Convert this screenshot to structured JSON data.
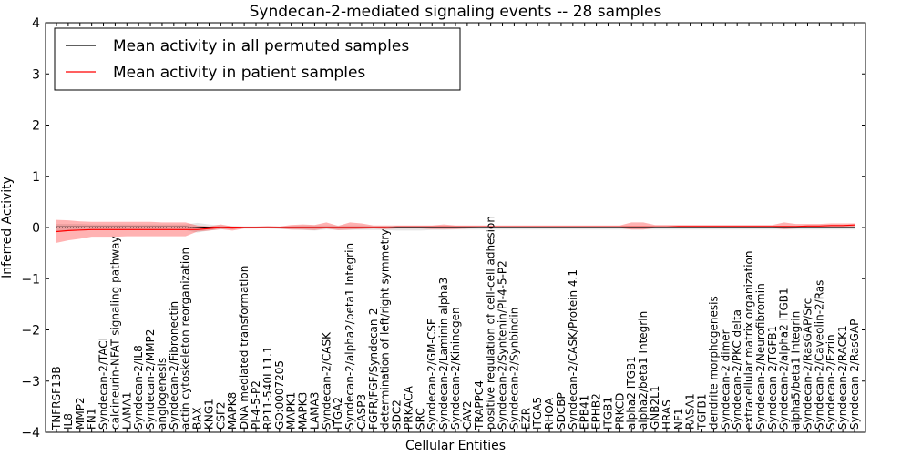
{
  "chart_data": {
    "type": "line",
    "title": "Syndecan-2-mediated signaling events -- 28 samples",
    "xlabel": "Cellular Entities",
    "ylabel": "Inferred Activity",
    "ylim": [
      -4,
      4
    ],
    "yticks": [
      -4,
      -3,
      -2,
      -1,
      0,
      1,
      2,
      3,
      4
    ],
    "ytick_labels": [
      "−4",
      "−3",
      "−2",
      "−1",
      "0",
      "1",
      "2",
      "3",
      "4"
    ],
    "legend_position": "top-left",
    "categories": [
      "TNFRSF13B",
      "IL8",
      "MMP2",
      "FN1",
      "Syndecan-2/TACI",
      "calcineurin-NFAT signaling pathway",
      "LAMA1",
      "Syndecan-2/IL8",
      "Syndecan-2/MMP2",
      "angiogenesis",
      "Syndecan-2/Fibronectin",
      "actin cytoskeleton reorganization",
      "BAX",
      "KNG1",
      "CSF2",
      "MAPK8",
      "DNA mediated transformation",
      "PI-4-5-P2",
      "RP11-540L11.1",
      "GO:0007205",
      "MAPK1",
      "MAPK3",
      "LAMA3",
      "Syndecan-2/CASK",
      "ITGA2",
      "Syndecan-2/alpha2/beta1 Integrin",
      "CASP3",
      "FGFR/FGF/Syndecan-2",
      "determination of left/right symmetry",
      "SDC2",
      "PRKACA",
      "SRC",
      "Syndecan-2/GM-CSF",
      "Syndecan-2/Laminin alpha3",
      "Syndecan-2/Kininogen",
      "CAV2",
      "TRAPPC4",
      "positive regulation of cell-cell adhesion",
      "Syndecan-2/Syntenin/PI-4-5-P2",
      "Syndecan-2/Synbindin",
      "EZR",
      "ITGA5",
      "RHOA",
      "SDCBP",
      "Syndecan-2/CASK/Protein 4.1",
      "EPB41",
      "EPHB2",
      "ITGB1",
      "PRKCD",
      "alpha2 ITGB1",
      "alpha2/beta1 Integrin",
      "GNB2L1",
      "HRAS",
      "NF1",
      "RASA1",
      "TGFB1",
      "dendrite morphogenesis",
      "Syndecan-2 dimer",
      "Syndecan-2/PKC delta",
      "extracellular matrix organization",
      "Syndecan-2/Neurofibromin",
      "Syndecan-2/TGFB1",
      "Syndecan-2/alpha2 ITGB1",
      "alpha5/beta1 Integrin",
      "Syndecan-2/RasGAP/Src",
      "Syndecan-2/Caveolin-2/Ras",
      "Syndecan-2/Ezrin",
      "Syndecan-2/RACK1",
      "Syndecan-2/RasGAP"
    ],
    "series": [
      {
        "name": "Mean activity in all permuted samples",
        "color": "#000000",
        "values": [
          0.01,
          0.01,
          0.01,
          0.01,
          0.01,
          0.01,
          0.01,
          0.01,
          0.01,
          0.01,
          0.01,
          0.01,
          0.0,
          -0.01,
          0.0,
          0.0,
          0.0,
          0.0,
          0.0,
          0.0,
          0.0,
          0.0,
          0.0,
          0.0,
          0.0,
          0.0,
          0.0,
          0.0,
          0.0,
          0.0,
          0.0,
          0.0,
          0.0,
          0.0,
          0.0,
          0.0,
          0.0,
          0.0,
          0.0,
          0.0,
          0.0,
          0.0,
          0.0,
          0.0,
          0.0,
          0.0,
          0.0,
          0.0,
          0.0,
          0.0,
          0.0,
          0.0,
          0.0,
          0.0,
          0.0,
          0.0,
          0.0,
          0.0,
          0.0,
          0.0,
          0.0,
          0.0,
          0.0,
          0.0,
          0.0,
          0.0,
          0.0,
          0.0,
          0.0
        ],
        "band_lower": [
          -0.08,
          -0.07,
          -0.06,
          -0.05,
          -0.05,
          -0.05,
          -0.05,
          -0.05,
          -0.05,
          -0.05,
          -0.05,
          -0.05,
          -0.1,
          -0.06,
          -0.04,
          -0.03,
          -0.02,
          -0.02,
          -0.02,
          -0.03,
          -0.04,
          -0.05,
          -0.06,
          -0.04,
          -0.05,
          -0.05,
          -0.05,
          -0.05,
          -0.05,
          -0.06,
          -0.06,
          -0.06,
          -0.05,
          -0.05,
          -0.04,
          -0.04,
          -0.04,
          -0.04,
          -0.04,
          -0.04,
          -0.04,
          -0.04,
          -0.04,
          -0.04,
          -0.04,
          -0.04,
          -0.04,
          -0.04,
          -0.04,
          -0.04,
          -0.04,
          -0.04,
          -0.04,
          -0.04,
          -0.04,
          -0.04,
          -0.04,
          -0.04,
          -0.04,
          -0.04,
          -0.04,
          -0.04,
          -0.04,
          -0.04,
          -0.04,
          -0.04,
          -0.04,
          -0.04,
          -0.04
        ],
        "band_upper": [
          0.07,
          0.07,
          0.07,
          0.06,
          0.06,
          0.06,
          0.06,
          0.06,
          0.06,
          0.06,
          0.06,
          0.06,
          0.09,
          0.06,
          0.04,
          0.03,
          0.02,
          0.02,
          0.02,
          0.02,
          0.03,
          0.04,
          0.04,
          0.04,
          0.04,
          0.04,
          0.04,
          0.03,
          0.03,
          0.03,
          0.03,
          0.03,
          0.03,
          0.03,
          0.03,
          0.03,
          0.03,
          0.03,
          0.03,
          0.03,
          0.03,
          0.03,
          0.03,
          0.03,
          0.03,
          0.03,
          0.03,
          0.03,
          0.03,
          0.03,
          0.03,
          0.03,
          0.03,
          0.03,
          0.03,
          0.03,
          0.03,
          0.03,
          0.03,
          0.03,
          0.03,
          0.03,
          0.03,
          0.03,
          0.03,
          0.03,
          0.03,
          0.03,
          0.03
        ]
      },
      {
        "name": "Mean activity in patient samples",
        "color": "#ff0000",
        "values": [
          -0.08,
          -0.06,
          -0.05,
          -0.04,
          -0.04,
          -0.04,
          -0.04,
          -0.04,
          -0.04,
          -0.04,
          -0.04,
          -0.04,
          -0.04,
          -0.02,
          0.0,
          -0.01,
          0.0,
          0.0,
          0.0,
          0.0,
          0.0,
          0.0,
          0.0,
          0.0,
          0.0,
          0.0,
          0.0,
          0.0,
          0.0,
          0.01,
          0.01,
          0.01,
          0.01,
          0.01,
          0.01,
          0.01,
          0.01,
          0.01,
          0.01,
          0.01,
          0.01,
          0.01,
          0.01,
          0.01,
          0.01,
          0.01,
          0.01,
          0.01,
          0.01,
          0.01,
          0.01,
          0.01,
          0.01,
          0.02,
          0.02,
          0.02,
          0.02,
          0.02,
          0.02,
          0.02,
          0.02,
          0.02,
          0.02,
          0.02,
          0.03,
          0.03,
          0.04,
          0.04,
          0.05
        ],
        "band_lower": [
          -0.3,
          -0.25,
          -0.22,
          -0.18,
          -0.18,
          -0.18,
          -0.17,
          -0.17,
          -0.17,
          -0.17,
          -0.17,
          -0.17,
          -0.08,
          -0.06,
          -0.03,
          -0.06,
          -0.02,
          -0.02,
          -0.01,
          -0.02,
          -0.04,
          -0.04,
          -0.05,
          -0.02,
          -0.05,
          -0.04,
          -0.03,
          -0.02,
          -0.03,
          -0.02,
          -0.02,
          -0.02,
          -0.03,
          -0.03,
          -0.03,
          -0.02,
          -0.01,
          -0.01,
          -0.01,
          -0.01,
          -0.01,
          -0.01,
          -0.01,
          -0.01,
          -0.01,
          -0.01,
          -0.01,
          -0.01,
          -0.01,
          -0.04,
          -0.04,
          -0.01,
          -0.01,
          -0.01,
          -0.01,
          -0.01,
          -0.01,
          -0.01,
          -0.01,
          -0.01,
          -0.01,
          -0.01,
          -0.03,
          -0.02,
          0.0,
          0.0,
          0.01,
          0.01,
          0.02
        ],
        "band_upper": [
          0.15,
          0.14,
          0.12,
          0.11,
          0.11,
          0.11,
          0.11,
          0.11,
          0.11,
          0.1,
          0.1,
          0.1,
          0.04,
          0.02,
          0.06,
          0.02,
          0.02,
          0.02,
          0.03,
          0.02,
          0.05,
          0.06,
          0.05,
          0.1,
          0.03,
          0.1,
          0.08,
          0.04,
          0.04,
          0.04,
          0.04,
          0.04,
          0.04,
          0.06,
          0.04,
          0.04,
          0.04,
          0.04,
          0.04,
          0.04,
          0.04,
          0.04,
          0.04,
          0.04,
          0.04,
          0.04,
          0.04,
          0.04,
          0.04,
          0.1,
          0.1,
          0.05,
          0.05,
          0.05,
          0.05,
          0.05,
          0.05,
          0.05,
          0.05,
          0.05,
          0.05,
          0.05,
          0.1,
          0.07,
          0.07,
          0.07,
          0.08,
          0.08,
          0.08
        ]
      }
    ]
  }
}
